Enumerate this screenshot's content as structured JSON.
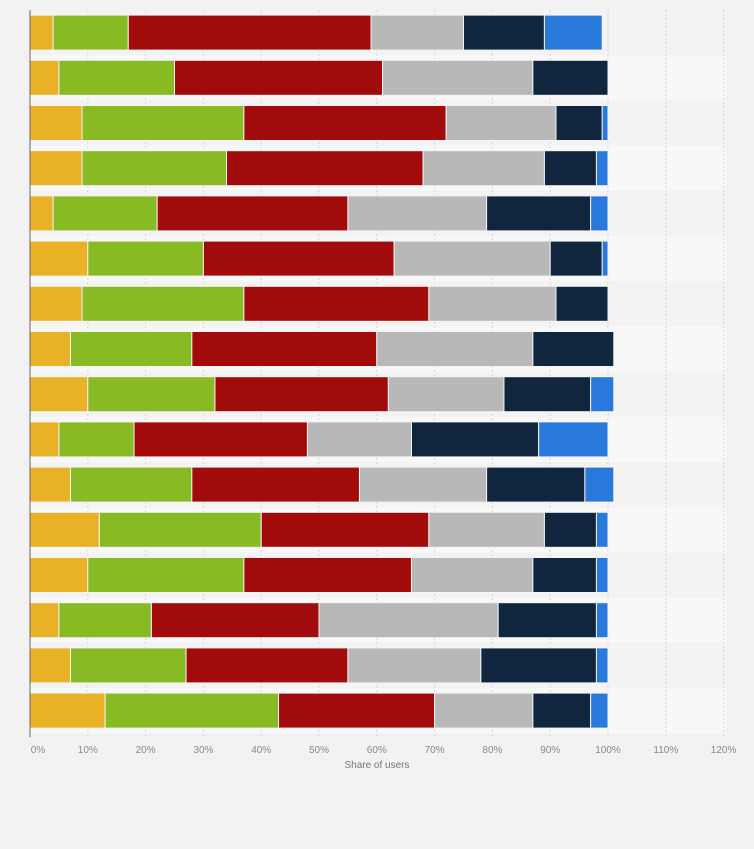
{
  "chart_data": {
    "type": "bar",
    "orientation": "horizontal",
    "stacked": true,
    "title": "",
    "xlabel": "Share of users",
    "ylabel": "",
    "xlim": [
      0,
      120
    ],
    "xticks": [
      "0%",
      "10%",
      "20%",
      "30%",
      "40%",
      "50%",
      "60%",
      "70%",
      "80%",
      "90%",
      "100%",
      "110%",
      "120%"
    ],
    "grid": true,
    "rows": 16,
    "series": [
      {
        "color": "#e9b125",
        "values": [
          4,
          5,
          9,
          9,
          4,
          10,
          9,
          7,
          10,
          5,
          7,
          12,
          10,
          5,
          7,
          13
        ]
      },
      {
        "color": "#88ba24",
        "values": [
          13,
          20,
          28,
          25,
          18,
          20,
          28,
          21,
          22,
          13,
          21,
          28,
          27,
          16,
          20,
          30
        ]
      },
      {
        "color": "#a20b0b",
        "values": [
          42,
          36,
          35,
          34,
          33,
          33,
          32,
          32,
          30,
          30,
          29,
          29,
          29,
          29,
          28,
          27
        ]
      },
      {
        "color": "#b8b8b8",
        "values": [
          16,
          26,
          19,
          21,
          24,
          27,
          22,
          27,
          20,
          18,
          22,
          20,
          21,
          31,
          23,
          17
        ]
      },
      {
        "color": "#10263f",
        "values": [
          14,
          13,
          8,
          9,
          18,
          9,
          9,
          14,
          15,
          22,
          17,
          9,
          11,
          17,
          20,
          10
        ]
      },
      {
        "color": "#2979dd",
        "values": [
          10,
          0,
          1,
          2,
          3,
          1,
          0,
          0,
          4,
          12,
          5,
          2,
          2,
          2,
          2,
          3
        ]
      }
    ]
  }
}
